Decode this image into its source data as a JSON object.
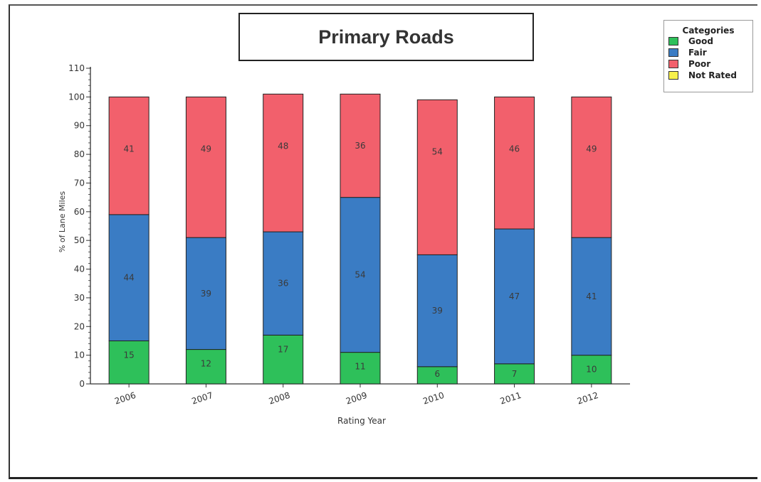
{
  "chart_data": {
    "type": "bar",
    "stacked": true,
    "title": "Primary Roads",
    "xlabel": "Rating Year",
    "ylabel": "% of Lane Miles",
    "ylim": [
      0,
      110
    ],
    "yticks": [
      0,
      10,
      20,
      30,
      40,
      50,
      60,
      70,
      80,
      90,
      100,
      110
    ],
    "categories": [
      "2006",
      "2007",
      "2008",
      "2009",
      "2010",
      "2011",
      "2012"
    ],
    "series": [
      {
        "name": "Good",
        "color": "#2ec05a",
        "values": [
          15,
          12,
          17,
          11,
          6,
          7,
          10
        ]
      },
      {
        "name": "Fair",
        "color": "#3a7cc4",
        "values": [
          44,
          39,
          36,
          54,
          39,
          47,
          41
        ]
      },
      {
        "name": "Poor",
        "color": "#f2606c",
        "values": [
          41,
          49,
          48,
          36,
          54,
          46,
          49
        ]
      },
      {
        "name": "Not Rated",
        "color": "#f7f04a",
        "values": [
          0,
          0,
          0,
          0,
          0,
          0,
          0
        ]
      }
    ],
    "legend": {
      "title": "Categories",
      "position": "top-right"
    },
    "grid": false
  }
}
